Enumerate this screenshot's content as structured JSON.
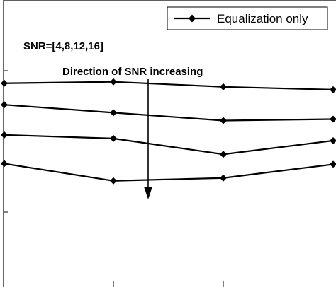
{
  "chart_data": {
    "type": "line",
    "x": [
      1,
      2,
      3,
      4
    ],
    "xlim": [
      0,
      4
    ],
    "ylim": [
      0,
      400
    ],
    "series": [
      {
        "name": "Equalization only",
        "values": [
          284,
          286,
          279,
          275
        ]
      },
      {
        "name": "",
        "values": [
          254,
          243,
          232,
          234
        ]
      },
      {
        "name": "",
        "values": [
          212,
          207,
          185,
          204
        ]
      },
      {
        "name": "",
        "values": [
          172,
          148,
          152,
          171
        ]
      }
    ],
    "legend": {
      "position": "top-right",
      "entries": [
        "Equalization only"
      ]
    },
    "annotations": {
      "snr_list": "SNR=[4,8,12,16]",
      "direction": "Direction of SNR increasing"
    },
    "grid": false,
    "line_color": "#000000",
    "marker": "diamond"
  }
}
